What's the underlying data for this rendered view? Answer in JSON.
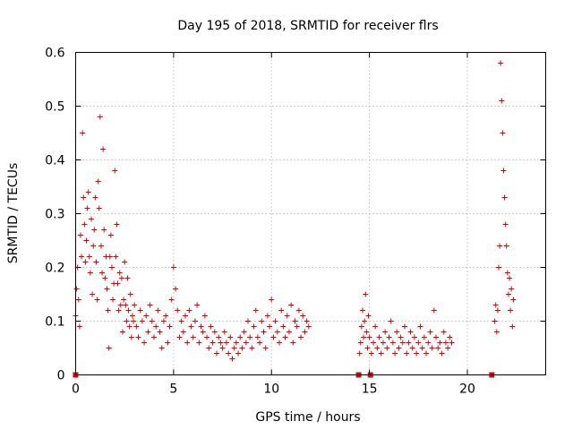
{
  "chart_data": {
    "type": "scatter",
    "title": "Day 195 of 2018, SRMTID for receiver flrs",
    "xlabel": "GPS time / hours",
    "ylabel": "SRMTID / TECUs",
    "xlim": [
      0,
      24
    ],
    "ylim": [
      0,
      0.6
    ],
    "xticks": [
      0,
      5,
      10,
      15,
      20
    ],
    "yticks": [
      0,
      0.1,
      0.2,
      0.3,
      0.4,
      0.5,
      0.6
    ],
    "xtick_labels": [
      "0",
      "5",
      "10",
      "15",
      "20"
    ],
    "ytick_labels": [
      "0",
      "0.1",
      "0.2",
      "0.3",
      "0.4",
      "0.5",
      "0.6"
    ],
    "grid": true,
    "marker": "+",
    "color": "#e00000",
    "series": [
      {
        "name": "flrs",
        "segments": [
          {
            "x": [
              0.0,
              0.05,
              0.1,
              0.15,
              0.2,
              0.25,
              0.3,
              0.35,
              0.4,
              0.45,
              0.5,
              0.55,
              0.6,
              0.65,
              0.7,
              0.75,
              0.8,
              0.85,
              0.9,
              0.95,
              1.0,
              1.05,
              1.1,
              1.15,
              1.2,
              1.25,
              1.3,
              1.35,
              1.4,
              1.45,
              1.5,
              1.55,
              1.6,
              1.65,
              1.7,
              1.75,
              1.8,
              1.85,
              1.9,
              1.95,
              2.0,
              2.05,
              2.1,
              2.15,
              2.2,
              2.25,
              2.3,
              2.35,
              2.4,
              2.45,
              2.5,
              2.55,
              2.6,
              2.65,
              2.7,
              2.75,
              2.8,
              2.85,
              2.9,
              2.95,
              3.0,
              3.1,
              3.2,
              3.3,
              3.4,
              3.5,
              3.6,
              3.7,
              3.8,
              3.9,
              4.0,
              4.1,
              4.2,
              4.3,
              4.4,
              4.5,
              4.6,
              4.7,
              4.8,
              4.9,
              5.0,
              5.1,
              5.2,
              5.3,
              5.4,
              5.5,
              5.6,
              5.7,
              5.8,
              5.9,
              6.0,
              6.1,
              6.2,
              6.3,
              6.4,
              6.5,
              6.6,
              6.7,
              6.8,
              6.9,
              7.0,
              7.1,
              7.2,
              7.3,
              7.4,
              7.5,
              7.6,
              7.7,
              7.8,
              7.9,
              8.0,
              8.1,
              8.2,
              8.3,
              8.4,
              8.5,
              8.6,
              8.7,
              8.8,
              8.9,
              9.0,
              9.1,
              9.2,
              9.3,
              9.4,
              9.5,
              9.6,
              9.7,
              9.8,
              9.9,
              10.0,
              10.1,
              10.2,
              10.3,
              10.4,
              10.5,
              10.6,
              10.7,
              10.8,
              10.9,
              11.0,
              11.1,
              11.2,
              11.3,
              11.4,
              11.5,
              11.6,
              11.7,
              11.8,
              11.9
            ],
            "y": [
              0.11,
              0.16,
              0.2,
              0.14,
              0.09,
              0.26,
              0.22,
              0.45,
              0.33,
              0.28,
              0.21,
              0.25,
              0.31,
              0.34,
              0.22,
              0.19,
              0.29,
              0.15,
              0.24,
              0.27,
              0.33,
              0.21,
              0.14,
              0.36,
              0.31,
              0.48,
              0.24,
              0.19,
              0.42,
              0.27,
              0.18,
              0.22,
              0.16,
              0.12,
              0.05,
              0.22,
              0.26,
              0.2,
              0.14,
              0.17,
              0.38,
              0.22,
              0.28,
              0.17,
              0.12,
              0.19,
              0.13,
              0.18,
              0.08,
              0.14,
              0.21,
              0.13,
              0.1,
              0.18,
              0.12,
              0.09,
              0.15,
              0.07,
              0.11,
              0.1,
              0.13,
              0.09,
              0.07,
              0.12,
              0.1,
              0.06,
              0.11,
              0.08,
              0.13,
              0.1,
              0.07,
              0.09,
              0.12,
              0.08,
              0.05,
              0.1,
              0.11,
              0.06,
              0.09,
              0.14,
              0.2,
              0.16,
              0.12,
              0.07,
              0.1,
              0.08,
              0.11,
              0.06,
              0.12,
              0.09,
              0.07,
              0.1,
              0.13,
              0.06,
              0.09,
              0.08,
              0.11,
              0.07,
              0.05,
              0.09,
              0.06,
              0.08,
              0.04,
              0.07,
              0.06,
              0.05,
              0.08,
              0.06,
              0.04,
              0.07,
              0.03,
              0.05,
              0.06,
              0.04,
              0.07,
              0.05,
              0.08,
              0.06,
              0.1,
              0.07,
              0.05,
              0.09,
              0.12,
              0.07,
              0.06,
              0.1,
              0.08,
              0.05,
              0.11,
              0.09,
              0.14,
              0.07,
              0.1,
              0.08,
              0.06,
              0.12,
              0.09,
              0.07,
              0.11,
              0.08,
              0.13,
              0.06,
              0.1,
              0.09,
              0.12,
              0.07,
              0.11,
              0.08,
              0.1,
              0.09
            ]
          },
          {
            "x": [
              14.5,
              14.55,
              14.6,
              14.65,
              14.7,
              14.75,
              14.8,
              14.85,
              14.9,
              14.95,
              15.0,
              15.1,
              15.2,
              15.3,
              15.4,
              15.5,
              15.6,
              15.7,
              15.8,
              15.9,
              16.0,
              16.1,
              16.2,
              16.3,
              16.4,
              16.5,
              16.6,
              16.7,
              16.8,
              16.9,
              17.0,
              17.1,
              17.2,
              17.3,
              17.4,
              17.5,
              17.6,
              17.7,
              17.8,
              17.9,
              18.0,
              18.1,
              18.2,
              18.3,
              18.4,
              18.5,
              18.6,
              18.7,
              18.8,
              18.9,
              19.0,
              19.1,
              19.2
            ],
            "y": [
              0.04,
              0.06,
              0.09,
              0.12,
              0.07,
              0.1,
              0.15,
              0.08,
              0.05,
              0.11,
              0.07,
              0.04,
              0.06,
              0.09,
              0.05,
              0.07,
              0.04,
              0.06,
              0.08,
              0.05,
              0.07,
              0.1,
              0.06,
              0.04,
              0.08,
              0.05,
              0.07,
              0.06,
              0.09,
              0.04,
              0.06,
              0.08,
              0.05,
              0.07,
              0.04,
              0.06,
              0.09,
              0.05,
              0.07,
              0.04,
              0.06,
              0.08,
              0.05,
              0.12,
              0.07,
              0.05,
              0.06,
              0.04,
              0.08,
              0.06,
              0.05,
              0.07,
              0.06
            ]
          },
          {
            "x": [
              21.4,
              21.45,
              21.5,
              21.55,
              21.6,
              21.65,
              21.7,
              21.75,
              21.8,
              21.85,
              21.9,
              21.95,
              22.0,
              22.05,
              22.1,
              22.15,
              22.2,
              22.25,
              22.3,
              22.35
            ],
            "y": [
              0.1,
              0.13,
              0.08,
              0.12,
              0.2,
              0.24,
              0.58,
              0.51,
              0.45,
              0.38,
              0.33,
              0.28,
              0.24,
              0.19,
              0.15,
              0.18,
              0.12,
              0.16,
              0.09,
              0.14
            ]
          }
        ],
        "zero_markers_x": [
          0.0,
          14.45,
          15.05,
          21.25
        ]
      }
    ]
  }
}
